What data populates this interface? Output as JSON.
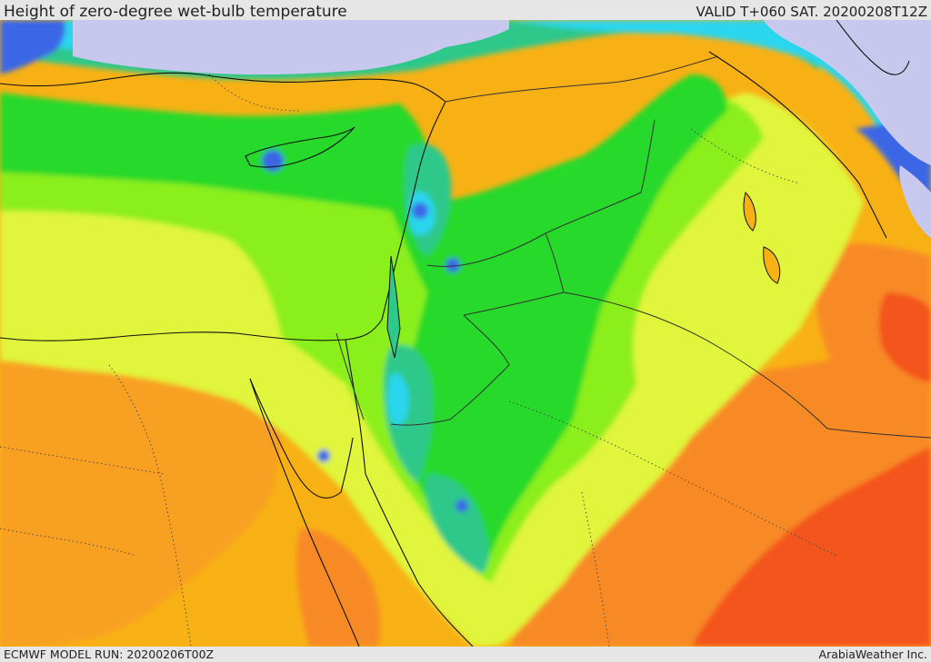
{
  "header": {
    "title": "Height of zero-degree wet-bulb temperature",
    "valid_time": "VALID T+060 SAT. 20200208T12Z"
  },
  "footer": {
    "model_run": "ECMWF MODEL RUN: 20200206T00Z",
    "credit": "ArabiaWeather Inc."
  },
  "map": {
    "palette": {
      "very_low": "#c8c8ef",
      "low_blue": "#3a66e6",
      "cyan": "#2ad6ee",
      "teal": "#2dc88a",
      "green": "#26d92b",
      "lime": "#8bef1c",
      "yellow": "#e0f53a",
      "gold": "#f8b114",
      "orange": "#f88a28",
      "red_orange": "#f4541c",
      "border": "#111111",
      "admin_border": "#333333"
    }
  }
}
